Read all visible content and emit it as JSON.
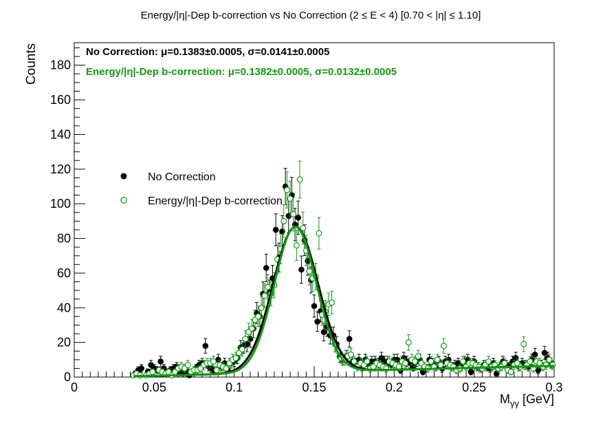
{
  "chart_data": {
    "type": "scatter",
    "title": "Energy/|η|-Dep b-correction vs No Correction   (2 ≤ E < 4)   [0.70 < |η| ≤ 1.10]",
    "xlabel": "M",
    "xlabel_sub": "γγ",
    "xlabel_unit": " [GeV]",
    "ylabel": "Counts",
    "xlim": [
      0,
      0.3
    ],
    "ylim": [
      0,
      193
    ],
    "x_ticks": [
      0,
      0.05,
      0.1,
      0.15,
      0.2,
      0.25,
      0.3
    ],
    "x_tick_labels": [
      "0",
      "0.05",
      "0.1",
      "0.15",
      "0.2",
      "0.25",
      "0.3"
    ],
    "y_ticks": [
      0,
      20,
      40,
      60,
      80,
      100,
      120,
      140,
      160,
      180
    ],
    "y_tick_labels": [
      "0",
      "20",
      "40",
      "60",
      "80",
      "100",
      "120",
      "140",
      "160",
      "180"
    ],
    "legend_position": "center-left",
    "annotations": [
      "No Correction: μ=0.1383±0.0005, σ=0.0141±0.0005",
      "Energy/|η|-Dep b-correction: μ=0.1382±0.0005, σ=0.0132±0.0005"
    ],
    "colors": {
      "nocorr": "#000000",
      "bcorr": "#119911"
    },
    "series": [
      {
        "name": "No Correction",
        "marker": "filled-circle",
        "color": "#000000",
        "x": [
          0.038,
          0.04,
          0.042,
          0.046,
          0.048,
          0.05,
          0.052,
          0.054,
          0.056,
          0.058,
          0.06,
          0.062,
          0.064,
          0.066,
          0.068,
          0.07,
          0.072,
          0.074,
          0.076,
          0.078,
          0.08,
          0.082,
          0.084,
          0.086,
          0.088,
          0.09,
          0.092,
          0.094,
          0.096,
          0.098,
          0.1,
          0.102,
          0.104,
          0.106,
          0.108,
          0.11,
          0.112,
          0.114,
          0.116,
          0.118,
          0.12,
          0.122,
          0.124,
          0.126,
          0.128,
          0.13,
          0.132,
          0.134,
          0.136,
          0.138,
          0.14,
          0.142,
          0.144,
          0.146,
          0.148,
          0.15,
          0.152,
          0.154,
          0.156,
          0.158,
          0.16,
          0.162,
          0.164,
          0.166,
          0.168,
          0.17,
          0.172,
          0.174,
          0.176,
          0.178,
          0.18,
          0.182,
          0.184,
          0.186,
          0.188,
          0.19,
          0.192,
          0.194,
          0.196,
          0.198,
          0.2,
          0.202,
          0.204,
          0.206,
          0.208,
          0.21,
          0.212,
          0.214,
          0.216,
          0.218,
          0.22,
          0.222,
          0.224,
          0.226,
          0.228,
          0.23,
          0.232,
          0.234,
          0.236,
          0.238,
          0.24,
          0.242,
          0.244,
          0.246,
          0.248,
          0.25,
          0.252,
          0.254,
          0.256,
          0.258,
          0.26,
          0.262,
          0.264,
          0.266,
          0.268,
          0.27,
          0.272,
          0.274,
          0.276,
          0.278,
          0.28,
          0.282,
          0.284,
          0.286,
          0.288,
          0.29,
          0.292,
          0.294,
          0.296,
          0.298
        ],
        "y": [
          2,
          4,
          5,
          3,
          7,
          5,
          4,
          9,
          5,
          3,
          4,
          5,
          6,
          3,
          2,
          4,
          1,
          3,
          5,
          7,
          8,
          18,
          6,
          5,
          3,
          10,
          6,
          8,
          4,
          8,
          9,
          11,
          17,
          18,
          19,
          22,
          28,
          37,
          35,
          48,
          63,
          49,
          57,
          85,
          69,
          84,
          110,
          93,
          105,
          88,
          92,
          62,
          79,
          67,
          56,
          41,
          32,
          38,
          26,
          29,
          24,
          24,
          19,
          12,
          10,
          12,
          22,
          9,
          8,
          10,
          6,
          10,
          7,
          9,
          9,
          8,
          11,
          9,
          9,
          7,
          10,
          10,
          4,
          11,
          9,
          8,
          6,
          9,
          10,
          3,
          5,
          10,
          8,
          6,
          9,
          5,
          9,
          10,
          6,
          7,
          8,
          6,
          9,
          10,
          3,
          9,
          6,
          5,
          7,
          6,
          5,
          8,
          2,
          6,
          9,
          7,
          6,
          9,
          11,
          6,
          8,
          7,
          6,
          10,
          13,
          4,
          7,
          14,
          11,
          8
        ],
        "fit": {
          "amp": 84,
          "mean": 0.1383,
          "sigma": 0.0141,
          "bkg": [
            -0.4,
            23,
            0
          ]
        }
      },
      {
        "name": "Energy/|η|-Dep b-correction",
        "marker": "open-circle",
        "color": "#119911",
        "x": [
          0.037,
          0.039,
          0.041,
          0.045,
          0.047,
          0.049,
          0.053,
          0.055,
          0.057,
          0.059,
          0.061,
          0.063,
          0.065,
          0.067,
          0.069,
          0.071,
          0.073,
          0.075,
          0.077,
          0.079,
          0.081,
          0.083,
          0.085,
          0.087,
          0.089,
          0.091,
          0.093,
          0.095,
          0.097,
          0.099,
          0.101,
          0.103,
          0.105,
          0.107,
          0.109,
          0.111,
          0.113,
          0.115,
          0.117,
          0.119,
          0.121,
          0.123,
          0.125,
          0.127,
          0.129,
          0.131,
          0.133,
          0.135,
          0.137,
          0.139,
          0.141,
          0.143,
          0.145,
          0.147,
          0.149,
          0.151,
          0.153,
          0.155,
          0.157,
          0.159,
          0.161,
          0.163,
          0.165,
          0.167,
          0.169,
          0.171,
          0.173,
          0.175,
          0.177,
          0.179,
          0.181,
          0.183,
          0.185,
          0.187,
          0.189,
          0.191,
          0.193,
          0.195,
          0.197,
          0.199,
          0.201,
          0.203,
          0.205,
          0.207,
          0.209,
          0.211,
          0.213,
          0.215,
          0.217,
          0.219,
          0.221,
          0.223,
          0.225,
          0.227,
          0.229,
          0.231,
          0.233,
          0.235,
          0.237,
          0.239,
          0.241,
          0.243,
          0.245,
          0.247,
          0.249,
          0.251,
          0.253,
          0.255,
          0.257,
          0.259,
          0.261,
          0.263,
          0.265,
          0.267,
          0.269,
          0.271,
          0.273,
          0.275,
          0.277,
          0.279,
          0.281,
          0.283,
          0.285,
          0.287,
          0.289,
          0.291,
          0.293,
          0.295,
          0.297,
          0.299
        ],
        "y": [
          1,
          2,
          1,
          1,
          2,
          3,
          4,
          3,
          2,
          3,
          1,
          3,
          5,
          6,
          5,
          7,
          3,
          4,
          4,
          5,
          7,
          8,
          8,
          9,
          4,
          7,
          6,
          5,
          8,
          10,
          11,
          14,
          16,
          22,
          26,
          28,
          33,
          35,
          40,
          47,
          52,
          48,
          53,
          68,
          74,
          90,
          108,
          103,
          94,
          76,
          114,
          86,
          73,
          61,
          57,
          58,
          83,
          36,
          38,
          42,
          43,
          19,
          15,
          11,
          10,
          12,
          13,
          9,
          6,
          8,
          7,
          9,
          5,
          6,
          8,
          7,
          6,
          5,
          9,
          8,
          7,
          6,
          9,
          8,
          20,
          10,
          9,
          12,
          8,
          6,
          5,
          9,
          6,
          10,
          7,
          18,
          8,
          7,
          6,
          4,
          5,
          9,
          6,
          8,
          8,
          7,
          6,
          5,
          7,
          9,
          6,
          7,
          5,
          6,
          8,
          4,
          3,
          7,
          8,
          6,
          19,
          7,
          9,
          5,
          9,
          8,
          6,
          7,
          10,
          7
        ],
        "fit": {
          "amp": 84,
          "mean": 0.1382,
          "sigma": 0.0132,
          "bkg": [
            -0.4,
            23,
            0
          ]
        }
      }
    ]
  }
}
